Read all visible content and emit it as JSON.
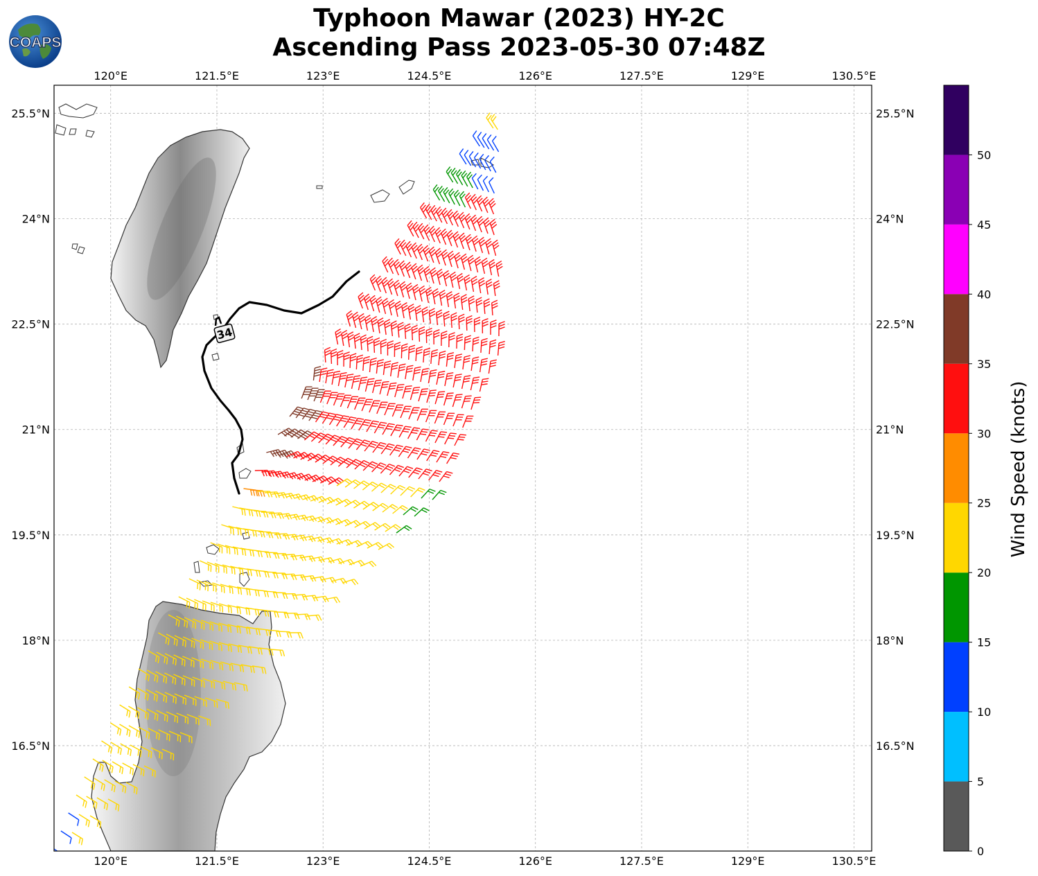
{
  "title": {
    "line1": "Typhoon Mawar (2023) HY-2C",
    "line2": "Ascending Pass 2023-05-30 07:48Z"
  },
  "logo": {
    "text": "COAPS",
    "icon": "globe-icon"
  },
  "map": {
    "lon_range": [
      119.2,
      130.75
    ],
    "lat_range": [
      15.0,
      25.9
    ],
    "lon_ticks": [
      {
        "value": 120.0,
        "label": "120°E"
      },
      {
        "value": 121.5,
        "label": "121.5°E"
      },
      {
        "value": 123.0,
        "label": "123°E"
      },
      {
        "value": 124.5,
        "label": "124.5°E"
      },
      {
        "value": 126.0,
        "label": "126°E"
      },
      {
        "value": 127.5,
        "label": "127.5°E"
      },
      {
        "value": 129.0,
        "label": "129°E"
      },
      {
        "value": 130.5,
        "label": "130.5°E"
      }
    ],
    "lat_ticks": [
      {
        "value": 25.5,
        "label": "25.5°N"
      },
      {
        "value": 24.0,
        "label": "24°N"
      },
      {
        "value": 22.5,
        "label": "22.5°N"
      },
      {
        "value": 21.0,
        "label": "21°N"
      },
      {
        "value": 19.5,
        "label": "19.5°N"
      },
      {
        "value": 18.0,
        "label": "18°N"
      },
      {
        "value": 16.5,
        "label": "16.5°N"
      }
    ],
    "grid": true,
    "storm_label": "34",
    "track_color": "#000000",
    "coast_color": "#333333"
  },
  "colorbar": {
    "label": "Wind Speed (knots)",
    "ticks": [
      {
        "value": 0,
        "label": "0"
      },
      {
        "value": 5,
        "label": "5"
      },
      {
        "value": 10,
        "label": "10"
      },
      {
        "value": 15,
        "label": "15"
      },
      {
        "value": 20,
        "label": "20"
      },
      {
        "value": 25,
        "label": "25"
      },
      {
        "value": 30,
        "label": "30"
      },
      {
        "value": 35,
        "label": "35"
      },
      {
        "value": 40,
        "label": "40"
      },
      {
        "value": 45,
        "label": "45"
      },
      {
        "value": 50,
        "label": "50"
      }
    ],
    "bins": [
      {
        "min": 0,
        "max": 5,
        "color": "#595959"
      },
      {
        "min": 5,
        "max": 10,
        "color": "#00bfff"
      },
      {
        "min": 10,
        "max": 15,
        "color": "#0040ff"
      },
      {
        "min": 15,
        "max": 20,
        "color": "#009600"
      },
      {
        "min": 20,
        "max": 25,
        "color": "#ffd700"
      },
      {
        "min": 25,
        "max": 30,
        "color": "#ff8c00"
      },
      {
        "min": 30,
        "max": 35,
        "color": "#ff0f0f"
      },
      {
        "min": 35,
        "max": 40,
        "color": "#803a28"
      },
      {
        "min": 40,
        "max": 45,
        "color": "#ff00ff"
      },
      {
        "min": 45,
        "max": 50,
        "color": "#8a00b4"
      },
      {
        "min": 50,
        "max": 55,
        "color": "#300060"
      }
    ]
  }
}
